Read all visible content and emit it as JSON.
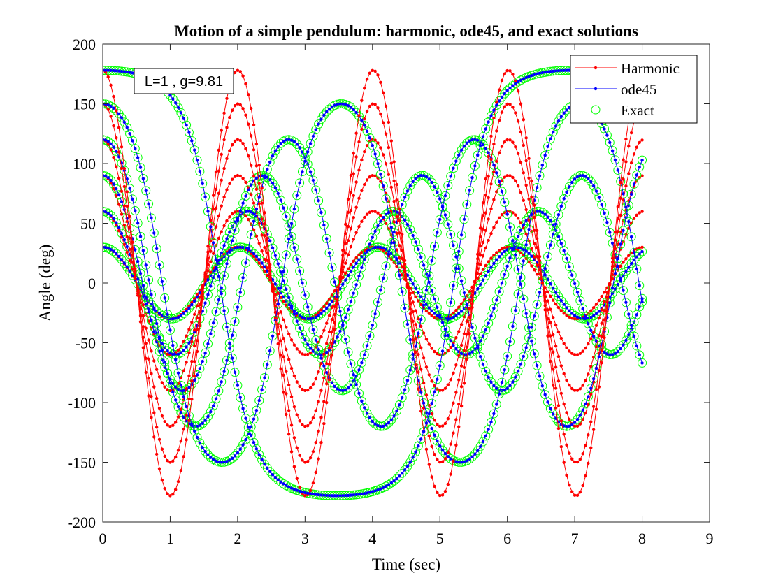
{
  "chart_data": {
    "type": "line",
    "title": "Motion of a simple pendulum: harmonic, ode45, and exact solutions",
    "xlabel": "Time (sec)",
    "ylabel": "Angle (deg)",
    "xlim": [
      0,
      9
    ],
    "ylim": [
      -200,
      200
    ],
    "xticks": [
      0,
      1,
      2,
      3,
      4,
      5,
      6,
      7,
      8,
      9
    ],
    "yticks": [
      200,
      150,
      100,
      50,
      0,
      -50,
      -100,
      -150,
      -200
    ],
    "grid": false,
    "box": true,
    "legend_position": "top-right",
    "annotation": "L=1 , g=9.81",
    "parameters": {
      "L": 1,
      "g": 9.81
    },
    "time_range": [
      0,
      8
    ],
    "initial_angles_deg": [
      30,
      60,
      90,
      120,
      150,
      178
    ],
    "sample_step_sec": 0.04,
    "series": [
      {
        "name": "Harmonic",
        "color": "#ff0000",
        "marker": "dot",
        "line": "solid"
      },
      {
        "name": "ode45",
        "color": "#0000ff",
        "marker": "dot",
        "line": "solid"
      },
      {
        "name": "Exact",
        "color": "#00ff00",
        "marker": "circle",
        "line": "none"
      }
    ]
  }
}
